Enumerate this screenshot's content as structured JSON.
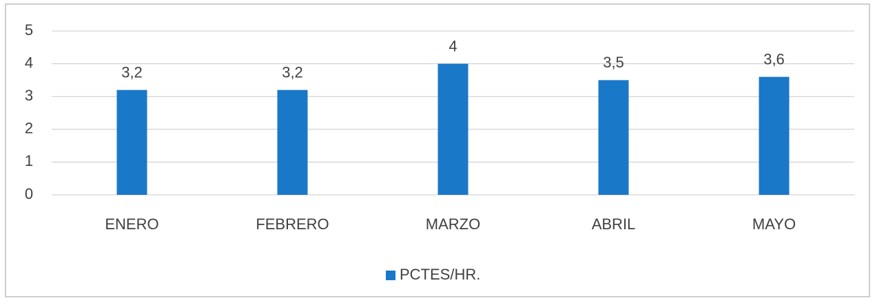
{
  "chart_data": {
    "type": "bar",
    "categories": [
      "ENERO",
      "FEBRERO",
      "MARZO",
      "ABRIL",
      "MAYO"
    ],
    "series": [
      {
        "name": "PCTES/HR.",
        "color": "#1a78c8",
        "values": [
          3.2,
          3.2,
          4,
          3.5,
          3.6
        ],
        "value_labels": [
          "3,2",
          "3,2",
          "4",
          "3,5",
          "3,6"
        ]
      }
    ],
    "ylim": [
      0,
      5
    ],
    "yticks": [
      0,
      1,
      2,
      3,
      4,
      5
    ],
    "grid": true,
    "legend": "bottom"
  }
}
